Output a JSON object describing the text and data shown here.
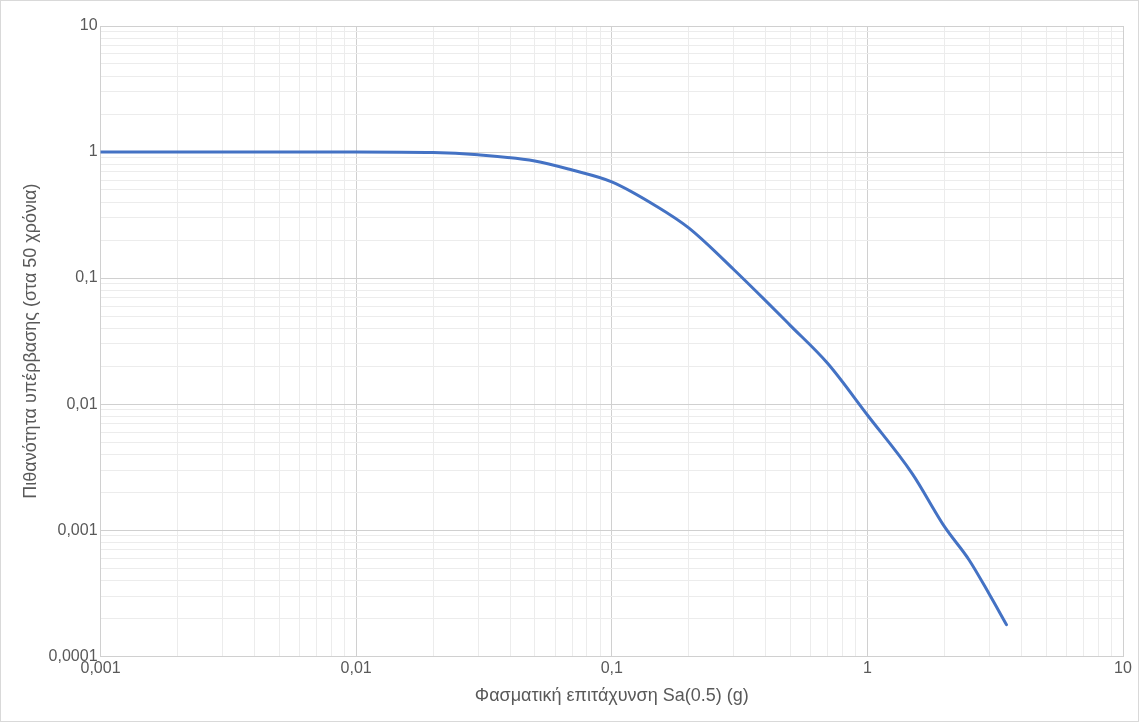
{
  "chart_data": {
    "type": "line",
    "xlabel": "Φασματική επιτάχυνση Sa(0.5) (g)",
    "ylabel": "Πιθανότητα υπέρβασης (στα 50 χρόνια)",
    "log": "xy",
    "grid": true,
    "legend": false,
    "marker": "none",
    "line_style": "solid",
    "x": [
      0.001,
      0.005,
      0.01,
      0.02,
      0.03,
      0.05,
      0.07,
      0.1,
      0.15,
      0.2,
      0.3,
      0.5,
      0.7,
      1,
      1.5,
      2,
      2.5,
      3,
      3.5
    ],
    "series": [
      {
        "color": "#4472c4",
        "values": [
          1,
          1,
          1,
          0.99,
          0.95,
          0.85,
          0.72,
          0.58,
          0.37,
          0.25,
          0.117,
          0.042,
          0.021,
          0.0082,
          0.0028,
          0.00107,
          0.00058,
          0.00031,
          0.000178
        ]
      }
    ],
    "xlim": [
      0.001,
      10
    ],
    "ylim": [
      0.0001,
      10
    ],
    "xticks": [
      {
        "value": 0.001,
        "label": "0,001"
      },
      {
        "value": 0.002,
        "label": null
      },
      {
        "value": 0.003,
        "label": null
      },
      {
        "value": 0.004,
        "label": null
      },
      {
        "value": 0.005,
        "label": null
      },
      {
        "value": 0.006,
        "label": null
      },
      {
        "value": 0.007,
        "label": null
      },
      {
        "value": 0.008,
        "label": null
      },
      {
        "value": 0.009,
        "label": null
      },
      {
        "value": 0.01,
        "label": "0,01"
      },
      {
        "value": 0.02,
        "label": null
      },
      {
        "value": 0.03,
        "label": null
      },
      {
        "value": 0.04,
        "label": null
      },
      {
        "value": 0.05,
        "label": null
      },
      {
        "value": 0.06,
        "label": null
      },
      {
        "value": 0.07,
        "label": null
      },
      {
        "value": 0.08,
        "label": null
      },
      {
        "value": 0.09,
        "label": null
      },
      {
        "value": 0.1,
        "label": "0,1"
      },
      {
        "value": 0.2,
        "label": null
      },
      {
        "value": 0.3,
        "label": null
      },
      {
        "value": 0.4,
        "label": null
      },
      {
        "value": 0.5,
        "label": null
      },
      {
        "value": 0.6,
        "label": null
      },
      {
        "value": 0.7,
        "label": null
      },
      {
        "value": 0.8,
        "label": null
      },
      {
        "value": 0.9,
        "label": null
      },
      1,
      {
        "value": 2,
        "label": null
      },
      {
        "value": 3,
        "label": null
      },
      {
        "value": 4,
        "label": null
      },
      {
        "value": 5,
        "label": null
      },
      {
        "value": 6,
        "label": null
      },
      {
        "value": 7,
        "label": null
      },
      {
        "value": 8,
        "label": null
      },
      {
        "value": 9,
        "label": null
      },
      10
    ],
    "yticks": [
      {
        "value": 0.0001,
        "label": "0,0001"
      },
      {
        "value": 0.0002,
        "label": null
      },
      {
        "value": 0.0003,
        "label": null
      },
      {
        "value": 0.0004,
        "label": null
      },
      {
        "value": 0.0005,
        "label": null
      },
      {
        "value": 0.0006,
        "label": null
      },
      {
        "value": 0.0007,
        "label": null
      },
      {
        "value": 0.0008,
        "label": null
      },
      {
        "value": 0.0009,
        "label": null
      },
      {
        "value": 0.001,
        "label": "0,001"
      },
      {
        "value": 0.002,
        "label": null
      },
      {
        "value": 0.003,
        "label": null
      },
      {
        "value": 0.004,
        "label": null
      },
      {
        "value": 0.005,
        "label": null
      },
      {
        "value": 0.006,
        "label": null
      },
      {
        "value": 0.007,
        "label": null
      },
      {
        "value": 0.008,
        "label": null
      },
      {
        "value": 0.009,
        "label": null
      },
      {
        "value": 0.01,
        "label": "0,01"
      },
      {
        "value": 0.02,
        "label": null
      },
      {
        "value": 0.03,
        "label": null
      },
      {
        "value": 0.04,
        "label": null
      },
      {
        "value": 0.05,
        "label": null
      },
      {
        "value": 0.06,
        "label": null
      },
      {
        "value": 0.07,
        "label": null
      },
      {
        "value": 0.08,
        "label": null
      },
      {
        "value": 0.09,
        "label": null
      },
      {
        "value": 0.1,
        "label": "0,1"
      },
      {
        "value": 0.2,
        "label": null
      },
      {
        "value": 0.3,
        "label": null
      },
      {
        "value": 0.4,
        "label": null
      },
      {
        "value": 0.5,
        "label": null
      },
      {
        "value": 0.6,
        "label": null
      },
      {
        "value": 0.7,
        "label": null
      },
      {
        "value": 0.8,
        "label": null
      },
      {
        "value": 0.9,
        "label": null
      },
      1,
      {
        "value": 2,
        "label": null
      },
      {
        "value": 3,
        "label": null
      },
      {
        "value": 4,
        "label": null
      },
      {
        "value": 5,
        "label": null
      },
      {
        "value": 6,
        "label": null
      },
      {
        "value": 7,
        "label": null
      },
      {
        "value": 8,
        "label": null
      },
      {
        "value": 9,
        "label": null
      },
      10
    ]
  }
}
